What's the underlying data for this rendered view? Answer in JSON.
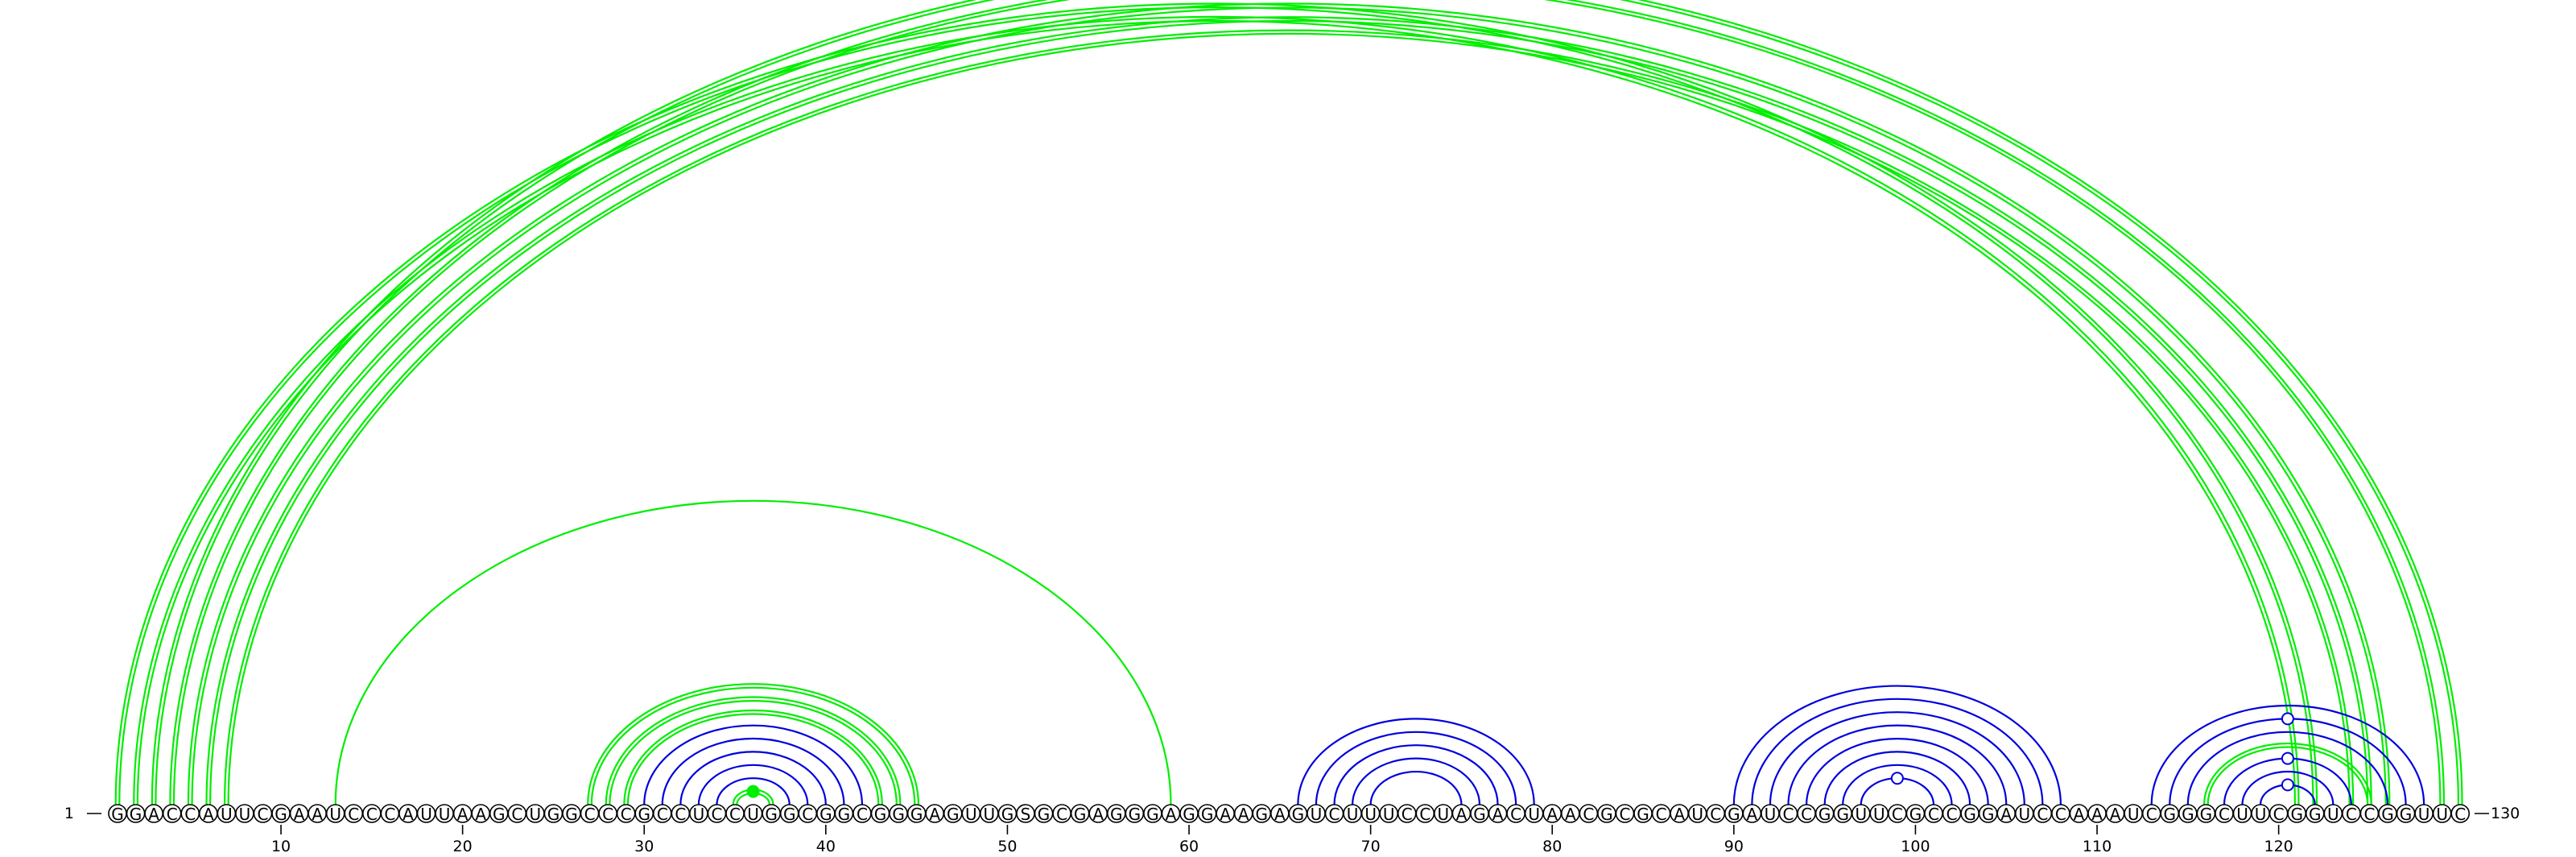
{
  "sequence": "GGACCAUUCGAAUCCCAUUAAGCUGGCCCGCCUCCUGGCGGCGGGAGUUGSGCGAGGGAGGAAGAGUCUUUCCUAGACUAACGCGCAUCGAUCCGGUUCGCCGGAUCCAAAUCGGGCUUCGGUCCGGUUC",
  "start_label": "1",
  "end_label": "130",
  "ticks": [
    10,
    20,
    30,
    40,
    50,
    60,
    70,
    80,
    90,
    100,
    110,
    120
  ],
  "colors": {
    "blue": "#0000dd",
    "green": "#00ee00",
    "green_dark": "#00aa00"
  },
  "arcs": [
    {
      "i": 1,
      "j": 122,
      "color": "green",
      "double": true
    },
    {
      "i": 2,
      "j": 121,
      "color": "green",
      "double": true
    },
    {
      "i": 3,
      "j": 130,
      "color": "green",
      "double": true,
      "marker": "open"
    },
    {
      "i": 4,
      "j": 129,
      "color": "green",
      "double": true
    },
    {
      "i": 5,
      "j": 126,
      "color": "green",
      "double": true
    },
    {
      "i": 6,
      "j": 125,
      "color": "green",
      "double": true
    },
    {
      "i": 7,
      "j": 124,
      "color": "green",
      "double": true
    },
    {
      "i": 13,
      "j": 59,
      "color": "green",
      "double": false
    },
    {
      "i": 27,
      "j": 45,
      "color": "green",
      "double": true
    },
    {
      "i": 28,
      "j": 44,
      "color": "green",
      "double": true
    },
    {
      "i": 29,
      "j": 43,
      "color": "green",
      "double": true
    },
    {
      "i": 30,
      "j": 42,
      "color": "blue",
      "double": false
    },
    {
      "i": 31,
      "j": 41,
      "color": "blue",
      "double": false
    },
    {
      "i": 32,
      "j": 40,
      "color": "blue",
      "double": false
    },
    {
      "i": 33,
      "j": 39,
      "color": "blue",
      "double": false
    },
    {
      "i": 34,
      "j": 38,
      "color": "blue",
      "double": false
    },
    {
      "i": 35,
      "j": 37,
      "color": "green",
      "double": true,
      "marker": "filled"
    },
    {
      "i": 66,
      "j": 79,
      "color": "blue",
      "double": false
    },
    {
      "i": 67,
      "j": 78,
      "color": "blue",
      "double": false
    },
    {
      "i": 68,
      "j": 77,
      "color": "blue",
      "double": false
    },
    {
      "i": 69,
      "j": 76,
      "color": "blue",
      "double": false
    },
    {
      "i": 70,
      "j": 75,
      "color": "blue",
      "double": false
    },
    {
      "i": 90,
      "j": 108,
      "color": "blue",
      "double": false
    },
    {
      "i": 91,
      "j": 107,
      "color": "blue",
      "double": false
    },
    {
      "i": 92,
      "j": 106,
      "color": "blue",
      "double": false
    },
    {
      "i": 93,
      "j": 105,
      "color": "blue",
      "double": false
    },
    {
      "i": 94,
      "j": 104,
      "color": "blue",
      "double": false
    },
    {
      "i": 95,
      "j": 103,
      "color": "blue",
      "double": false
    },
    {
      "i": 96,
      "j": 102,
      "color": "blue",
      "double": false
    },
    {
      "i": 97,
      "j": 101,
      "color": "blue",
      "double": false,
      "marker": "open"
    },
    {
      "i": 113,
      "j": 128,
      "color": "blue",
      "double": false
    },
    {
      "i": 114,
      "j": 127,
      "color": "blue",
      "double": false,
      "marker": "open"
    },
    {
      "i": 115,
      "j": 126,
      "color": "blue",
      "double": false
    },
    {
      "i": 116,
      "j": 125,
      "color": "green",
      "double": true
    },
    {
      "i": 117,
      "j": 124,
      "color": "blue",
      "double": false,
      "marker": "open"
    },
    {
      "i": 118,
      "j": 123,
      "color": "blue",
      "double": false
    },
    {
      "i": 119,
      "j": 122,
      "color": "blue",
      "double": false,
      "marker": "open"
    }
  ]
}
